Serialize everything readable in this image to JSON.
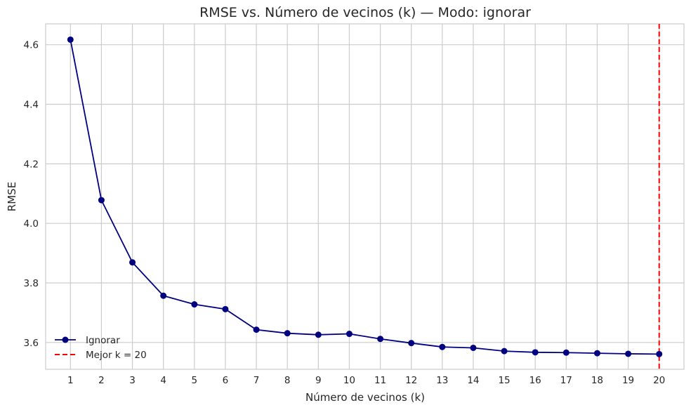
{
  "chart_data": {
    "type": "line",
    "title": "RMSE vs. Número de vecinos (k) — Modo: ignorar",
    "xlabel": "Número de vecinos (k)",
    "ylabel": "RMSE",
    "x": [
      1,
      2,
      3,
      4,
      5,
      6,
      7,
      8,
      9,
      10,
      11,
      12,
      13,
      14,
      15,
      16,
      17,
      18,
      19,
      20
    ],
    "series": [
      {
        "name": "Ignorar",
        "color": "#000080",
        "marker": "circle",
        "values": [
          4.617,
          4.078,
          3.869,
          3.757,
          3.728,
          3.712,
          3.643,
          3.631,
          3.626,
          3.629,
          3.612,
          3.598,
          3.585,
          3.582,
          3.571,
          3.567,
          3.566,
          3.564,
          3.562,
          3.561
        ]
      }
    ],
    "reference_line": {
      "label": "Mejor k = 20",
      "x": 20,
      "color": "#ff0000",
      "style": "dashed"
    },
    "xlim": [
      0.2,
      20.8
    ],
    "ylim": [
      3.51,
      4.67
    ],
    "yticks": [
      "3.6",
      "3.8",
      "4.0",
      "4.2",
      "4.4",
      "4.6"
    ],
    "xticks": [
      "1",
      "2",
      "3",
      "4",
      "5",
      "6",
      "7",
      "8",
      "9",
      "10",
      "11",
      "12",
      "13",
      "14",
      "15",
      "16",
      "17",
      "18",
      "19",
      "20"
    ],
    "grid": true,
    "legend_position": "lower-left"
  }
}
